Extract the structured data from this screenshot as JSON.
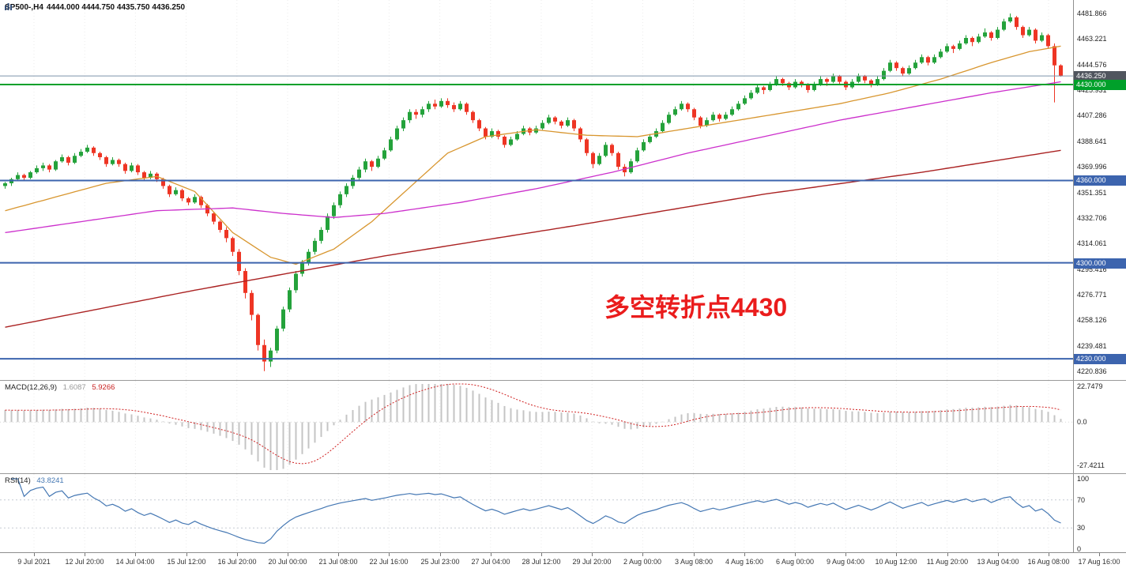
{
  "title": {
    "symbol": "SP500-,H4",
    "ohlc": "4444.000 4444.750 4435.750 4436.250"
  },
  "icons": {
    "chart_icon": "bar-chart"
  },
  "indicators": {
    "macd": {
      "name": "MACD(12,26,9)",
      "main": "1.6087",
      "signal": "5.9266"
    },
    "rsi": {
      "name": "RSI(14)",
      "value": "43.8241"
    }
  },
  "chart_data": {
    "type": "candlestick",
    "symbol": "SP500-",
    "timeframe": "H4",
    "current_bar": {
      "open": 4444.0,
      "high": 4444.75,
      "low": 4435.75,
      "close": 4436.25
    },
    "colors": {
      "up_candle": "#24a23b",
      "down_candle": "#ee3524",
      "ma_fast": "#d8962f",
      "ma_mid": "#cc2fcc",
      "ma_slow": "#aa2222",
      "level_blue": "#3c64ae",
      "level_green": "#00a02a",
      "price_line": "#7e93aa",
      "badge_current_bg": "#50555e",
      "macd_hist": "#c4c4c4",
      "macd_signal": "#d02020",
      "rsi_line": "#4477b3",
      "rsi_levels": "#c6ccd4",
      "annotation": "#ea1c1c",
      "grid": "#ebebeb"
    },
    "y_ticks": [
      "4481.866",
      "4463.221",
      "4444.576",
      "4425.931",
      "4407.286",
      "4388.641",
      "4369.996",
      "4351.351",
      "4332.706",
      "4314.061",
      "4295.416",
      "4276.771",
      "4258.126",
      "4239.481",
      "4220.836"
    ],
    "price_levels": [
      {
        "price": 4436.25,
        "label": "4436.250",
        "line_color": "#7e93aa",
        "badge_bg": "#50555e",
        "width": 1,
        "name": "current-price"
      },
      {
        "price": 4430.0,
        "label": "4430.000",
        "line_color": "#00a02a",
        "badge_bg": "#00a02a",
        "width": 2,
        "name": "pivot-4430"
      },
      {
        "price": 4360.0,
        "label": "4360.000",
        "line_color": "#3c64ae",
        "badge_bg": "#3c64ae",
        "width": 2,
        "name": "support-4360"
      },
      {
        "price": 4300.0,
        "label": "4300.000",
        "line_color": "#3c64ae",
        "badge_bg": "#3c64ae",
        "width": 2,
        "name": "support-4300"
      },
      {
        "price": 4230.0,
        "label": "4230.000",
        "line_color": "#3c64ae",
        "badge_bg": "#3c64ae",
        "width": 2,
        "name": "support-4230"
      }
    ],
    "annotation": {
      "text": "多空转折点4430",
      "color": "#ea1c1c"
    },
    "x_labels": [
      "9 Jul 2021",
      "12 Jul 20:00",
      "14 Jul 04:00",
      "15 Jul 12:00",
      "16 Jul 20:00",
      "20 Jul 00:00",
      "21 Jul 08:00",
      "22 Jul 16:00",
      "25 Jul 23:00",
      "27 Jul 04:00",
      "28 Jul 12:00",
      "29 Jul 20:00",
      "2 Aug 00:00",
      "3 Aug 08:00",
      "4 Aug 16:00",
      "6 Aug 00:00",
      "9 Aug 04:00",
      "10 Aug 12:00",
      "11 Aug 20:00",
      "13 Aug 04:00",
      "16 Aug 08:00",
      "17 Aug 16:00"
    ],
    "macd": {
      "params": [
        12,
        26,
        9
      ],
      "y_ticks": [
        "22.7479",
        "0.0",
        "-27.4211"
      ],
      "y_max": 22.7479,
      "y_min": -27.4211
    },
    "rsi": {
      "period": 14,
      "y_ticks": [
        "100",
        "70",
        "30",
        "0"
      ],
      "levels": [
        70,
        30
      ]
    },
    "moving_averages": [
      {
        "name": "ma-fast-orange",
        "color": "#d8962f",
        "width": 1.3,
        "anchors": [
          [
            0,
            4338
          ],
          [
            8,
            4348
          ],
          [
            16,
            4358
          ],
          [
            24,
            4363
          ],
          [
            30,
            4352
          ],
          [
            36,
            4322
          ],
          [
            42,
            4304
          ],
          [
            46,
            4299
          ],
          [
            52,
            4310
          ],
          [
            58,
            4330
          ],
          [
            64,
            4355
          ],
          [
            70,
            4380
          ],
          [
            76,
            4392
          ],
          [
            84,
            4397
          ],
          [
            92,
            4393
          ],
          [
            100,
            4392
          ],
          [
            108,
            4398
          ],
          [
            116,
            4404
          ],
          [
            124,
            4410
          ],
          [
            132,
            4416
          ],
          [
            140,
            4424
          ],
          [
            148,
            4434
          ],
          [
            156,
            4446
          ],
          [
            162,
            4454
          ],
          [
            167,
            4458
          ]
        ]
      },
      {
        "name": "ma-mid-magenta",
        "color": "#cc2fcc",
        "width": 1.3,
        "anchors": [
          [
            0,
            4322
          ],
          [
            12,
            4330
          ],
          [
            24,
            4338
          ],
          [
            36,
            4340
          ],
          [
            44,
            4336
          ],
          [
            52,
            4333
          ],
          [
            60,
            4336
          ],
          [
            72,
            4344
          ],
          [
            84,
            4354
          ],
          [
            96,
            4366
          ],
          [
            108,
            4380
          ],
          [
            120,
            4392
          ],
          [
            132,
            4404
          ],
          [
            144,
            4414
          ],
          [
            156,
            4424
          ],
          [
            167,
            4432
          ]
        ]
      },
      {
        "name": "ma-slow-red",
        "color": "#aa2222",
        "width": 1.4,
        "anchors": [
          [
            0,
            4253
          ],
          [
            30,
            4280
          ],
          [
            60,
            4305
          ],
          [
            90,
            4327
          ],
          [
            120,
            4350
          ],
          [
            145,
            4366
          ],
          [
            167,
            4382
          ]
        ]
      }
    ],
    "candles": [
      [
        4356,
        4359,
        4354,
        4358
      ],
      [
        4358,
        4362,
        4356,
        4361
      ],
      [
        4361,
        4366,
        4360,
        4364
      ],
      [
        4364,
        4365,
        4360,
        4362
      ],
      [
        4362,
        4367,
        4361,
        4366
      ],
      [
        4366,
        4371,
        4365,
        4369
      ],
      [
        4369,
        4373,
        4367,
        4371
      ],
      [
        4371,
        4372,
        4366,
        4368
      ],
      [
        4368,
        4375,
        4367,
        4374
      ],
      [
        4374,
        4379,
        4373,
        4377
      ],
      [
        4377,
        4378,
        4371,
        4373
      ],
      [
        4373,
        4380,
        4372,
        4378
      ],
      [
        4378,
        4383,
        4377,
        4381
      ],
      [
        4381,
        4386,
        4380,
        4384
      ],
      [
        4384,
        4385,
        4378,
        4380
      ],
      [
        4380,
        4381,
        4375,
        4377
      ],
      [
        4377,
        4378,
        4370,
        4372
      ],
      [
        4372,
        4377,
        4371,
        4375
      ],
      [
        4375,
        4376,
        4370,
        4372
      ],
      [
        4372,
        4373,
        4365,
        4367
      ],
      [
        4367,
        4373,
        4366,
        4371
      ],
      [
        4371,
        4372,
        4364,
        4366
      ],
      [
        4366,
        4367,
        4360,
        4362
      ],
      [
        4362,
        4367,
        4361,
        4365
      ],
      [
        4365,
        4366,
        4359,
        4361
      ],
      [
        4361,
        4362,
        4354,
        4356
      ],
      [
        4356,
        4357,
        4348,
        4350
      ],
      [
        4350,
        4355,
        4349,
        4353
      ],
      [
        4353,
        4354,
        4345,
        4347
      ],
      [
        4347,
        4348,
        4342,
        4344
      ],
      [
        4344,
        4350,
        4343,
        4348
      ],
      [
        4348,
        4349,
        4340,
        4342
      ],
      [
        4342,
        4343,
        4334,
        4336
      ],
      [
        4336,
        4337,
        4328,
        4330
      ],
      [
        4330,
        4331,
        4322,
        4324
      ],
      [
        4324,
        4326,
        4315,
        4318
      ],
      [
        4318,
        4319,
        4305,
        4308
      ],
      [
        4308,
        4310,
        4291,
        4294
      ],
      [
        4294,
        4296,
        4274,
        4278
      ],
      [
        4278,
        4280,
        4258,
        4262
      ],
      [
        4262,
        4263,
        4236,
        4240
      ],
      [
        4240,
        4244,
        4221,
        4228
      ],
      [
        4228,
        4238,
        4224,
        4236
      ],
      [
        4236,
        4254,
        4234,
        4252
      ],
      [
        4252,
        4268,
        4250,
        4266
      ],
      [
        4266,
        4282,
        4264,
        4280
      ],
      [
        4280,
        4294,
        4278,
        4292
      ],
      [
        4292,
        4302,
        4290,
        4300
      ],
      [
        4300,
        4310,
        4298,
        4308
      ],
      [
        4308,
        4318,
        4306,
        4316
      ],
      [
        4316,
        4326,
        4314,
        4324
      ],
      [
        4324,
        4336,
        4322,
        4334
      ],
      [
        4334,
        4344,
        4332,
        4342
      ],
      [
        4342,
        4352,
        4340,
        4350
      ],
      [
        4350,
        4358,
        4348,
        4356
      ],
      [
        4356,
        4364,
        4354,
        4362
      ],
      [
        4362,
        4370,
        4360,
        4368
      ],
      [
        4368,
        4376,
        4366,
        4374
      ],
      [
        4374,
        4375,
        4367,
        4370
      ],
      [
        4370,
        4378,
        4369,
        4376
      ],
      [
        4376,
        4384,
        4375,
        4382
      ],
      [
        4382,
        4392,
        4381,
        4390
      ],
      [
        4390,
        4400,
        4389,
        4398
      ],
      [
        4398,
        4406,
        4396,
        4404
      ],
      [
        4404,
        4412,
        4402,
        4410
      ],
      [
        4410,
        4412,
        4405,
        4408
      ],
      [
        4408,
        4414,
        4406,
        4412
      ],
      [
        4412,
        4418,
        4410,
        4416
      ],
      [
        4416,
        4419,
        4412,
        4414
      ],
      [
        4414,
        4420,
        4413,
        4418
      ],
      [
        4418,
        4420,
        4413,
        4415
      ],
      [
        4415,
        4417,
        4410,
        4412
      ],
      [
        4412,
        4418,
        4411,
        4416
      ],
      [
        4416,
        4417,
        4408,
        4410
      ],
      [
        4410,
        4411,
        4402,
        4404
      ],
      [
        4404,
        4405,
        4396,
        4398
      ],
      [
        4398,
        4399,
        4390,
        4392
      ],
      [
        4392,
        4398,
        4391,
        4396
      ],
      [
        4396,
        4397,
        4390,
        4392
      ],
      [
        4392,
        4393,
        4384,
        4386
      ],
      [
        4386,
        4392,
        4385,
        4390
      ],
      [
        4390,
        4396,
        4389,
        4394
      ],
      [
        4394,
        4400,
        4393,
        4398
      ],
      [
        4398,
        4399,
        4393,
        4395
      ],
      [
        4395,
        4400,
        4394,
        4398
      ],
      [
        4398,
        4404,
        4397,
        4402
      ],
      [
        4402,
        4408,
        4401,
        4406
      ],
      [
        4406,
        4407,
        4401,
        4403
      ],
      [
        4403,
        4404,
        4398,
        4400
      ],
      [
        4400,
        4406,
        4399,
        4404
      ],
      [
        4404,
        4405,
        4396,
        4398
      ],
      [
        4398,
        4399,
        4388,
        4390
      ],
      [
        4390,
        4391,
        4378,
        4380
      ],
      [
        4380,
        4381,
        4369,
        4372
      ],
      [
        4372,
        4380,
        4371,
        4378
      ],
      [
        4378,
        4388,
        4377,
        4386
      ],
      [
        4386,
        4387,
        4378,
        4380
      ],
      [
        4380,
        4381,
        4368,
        4370
      ],
      [
        4370,
        4372,
        4363,
        4366
      ],
      [
        4366,
        4376,
        4365,
        4374
      ],
      [
        4374,
        4384,
        4373,
        4382
      ],
      [
        4382,
        4390,
        4381,
        4388
      ],
      [
        4388,
        4394,
        4387,
        4392
      ],
      [
        4392,
        4398,
        4391,
        4396
      ],
      [
        4396,
        4404,
        4395,
        4402
      ],
      [
        4402,
        4410,
        4401,
        4408
      ],
      [
        4408,
        4414,
        4407,
        4412
      ],
      [
        4412,
        4418,
        4411,
        4416
      ],
      [
        4416,
        4417,
        4410,
        4412
      ],
      [
        4412,
        4413,
        4404,
        4406
      ],
      [
        4406,
        4407,
        4398,
        4400
      ],
      [
        4400,
        4406,
        4399,
        4404
      ],
      [
        4404,
        4410,
        4403,
        4408
      ],
      [
        4408,
        4409,
        4403,
        4405
      ],
      [
        4405,
        4410,
        4404,
        4408
      ],
      [
        4408,
        4414,
        4407,
        4412
      ],
      [
        4412,
        4418,
        4411,
        4416
      ],
      [
        4416,
        4422,
        4415,
        4420
      ],
      [
        4420,
        4426,
        4419,
        4424
      ],
      [
        4424,
        4430,
        4423,
        4428
      ],
      [
        4428,
        4429,
        4423,
        4426
      ],
      [
        4426,
        4432,
        4425,
        4430
      ],
      [
        4430,
        4436,
        4429,
        4434
      ],
      [
        4434,
        4435,
        4429,
        4431
      ],
      [
        4431,
        4432,
        4426,
        4428
      ],
      [
        4428,
        4434,
        4427,
        4432
      ],
      [
        4432,
        4433,
        4428,
        4430
      ],
      [
        4430,
        4431,
        4424,
        4426
      ],
      [
        4426,
        4432,
        4425,
        4430
      ],
      [
        4430,
        4436,
        4429,
        4434
      ],
      [
        4434,
        4435,
        4429,
        4432
      ],
      [
        4432,
        4438,
        4431,
        4436
      ],
      [
        4436,
        4437,
        4430,
        4432
      ],
      [
        4432,
        4433,
        4426,
        4428
      ],
      [
        4428,
        4434,
        4427,
        4432
      ],
      [
        4432,
        4438,
        4431,
        4436
      ],
      [
        4436,
        4437,
        4431,
        4433
      ],
      [
        4433,
        4434,
        4428,
        4430
      ],
      [
        4430,
        4436,
        4429,
        4434
      ],
      [
        4434,
        4442,
        4433,
        4440
      ],
      [
        4440,
        4448,
        4439,
        4446
      ],
      [
        4446,
        4447,
        4440,
        4442
      ],
      [
        4442,
        4443,
        4436,
        4438
      ],
      [
        4438,
        4444,
        4437,
        4442
      ],
      [
        4442,
        4448,
        4441,
        4446
      ],
      [
        4446,
        4452,
        4445,
        4450
      ],
      [
        4450,
        4451,
        4444,
        4446
      ],
      [
        4446,
        4452,
        4445,
        4450
      ],
      [
        4450,
        4456,
        4449,
        4454
      ],
      [
        4454,
        4460,
        4453,
        4458
      ],
      [
        4458,
        4459,
        4453,
        4456
      ],
      [
        4456,
        4462,
        4455,
        4460
      ],
      [
        4460,
        4466,
        4459,
        4464
      ],
      [
        4464,
        4465,
        4458,
        4461
      ],
      [
        4461,
        4467,
        4460,
        4465
      ],
      [
        4465,
        4471,
        4464,
        4468
      ],
      [
        4468,
        4469,
        4462,
        4464
      ],
      [
        4464,
        4472,
        4463,
        4470
      ],
      [
        4470,
        4478,
        4469,
        4476
      ],
      [
        4476,
        4481.8,
        4475,
        4479
      ],
      [
        4479,
        4480,
        4470,
        4472
      ],
      [
        4472,
        4473,
        4464,
        4466
      ],
      [
        4466,
        4472,
        4465,
        4470
      ],
      [
        4470,
        4471,
        4460,
        4462
      ],
      [
        4462,
        4468,
        4461,
        4466
      ],
      [
        4466,
        4467,
        4456,
        4458
      ],
      [
        4458,
        4460,
        4417,
        4444
      ],
      [
        4444.0,
        4444.75,
        4435.75,
        4436.25
      ]
    ]
  }
}
